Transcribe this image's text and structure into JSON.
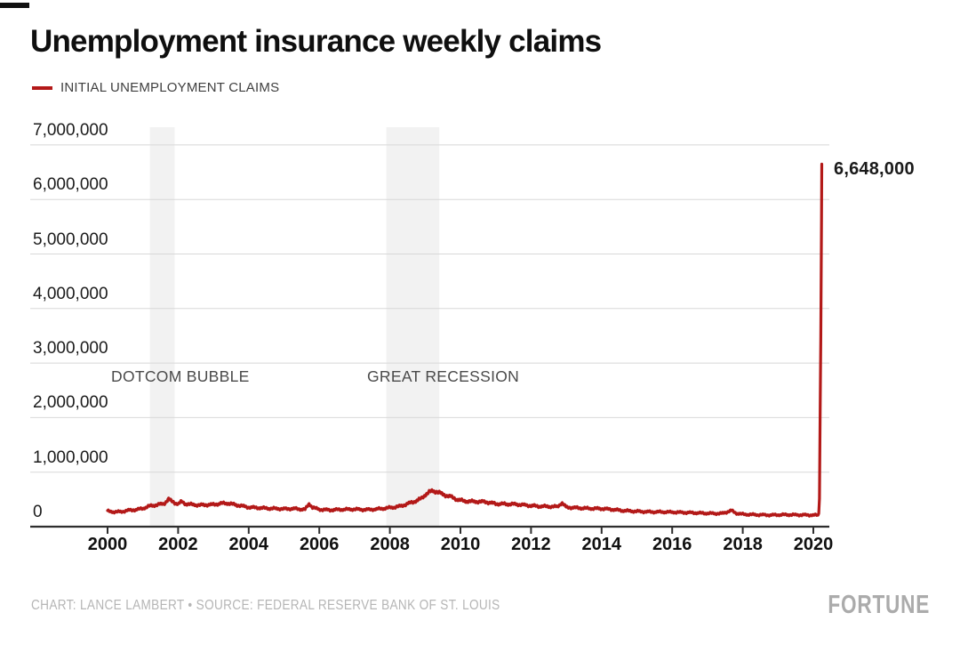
{
  "header": {
    "title": "Unemployment insurance weekly claims"
  },
  "legend": {
    "label": "INITIAL UNEMPLOYMENT CLAIMS"
  },
  "footer": {
    "credit": "CHART: LANCE LAMBERT • SOURCE: FEDERAL RESERVE BANK OF ST. LOUIS",
    "brand": "FORTUNE"
  },
  "chart_data": {
    "type": "line",
    "title": "Unemployment insurance weekly claims",
    "peak_label": "6,648,000",
    "peak_value": 6648000,
    "line_color": "#b31918",
    "band_color": "#f2f2f2",
    "grid_color": "#d8d8d8",
    "axis_color": "#2e2e2e",
    "x_axis": {
      "ticks": [
        2000,
        2002,
        2004,
        2006,
        2008,
        2010,
        2012,
        2014,
        2016,
        2018,
        2020
      ],
      "range": [
        2000,
        2020.3
      ]
    },
    "y_axis": {
      "ticks": [
        0,
        1000000,
        2000000,
        3000000,
        4000000,
        5000000,
        6000000,
        7000000
      ],
      "tick_labels": [
        "0",
        "1,000,000",
        "2,000,000",
        "3,000,000",
        "4,000,000",
        "5,000,000",
        "6,000,000",
        "7,000,000"
      ],
      "range": [
        0,
        7000000
      ]
    },
    "annotations": [
      {
        "label": "DOTCOM BUBBLE",
        "band_start": 2001.2,
        "band_end": 2001.9
      },
      {
        "label": "GREAT RECESSION",
        "band_start": 2007.9,
        "band_end": 2009.4
      }
    ],
    "series": [
      {
        "name": "INITIAL UNEMPLOYMENT CLAIMS",
        "points_year_thousands": [
          [
            2000.0,
            285
          ],
          [
            2000.2,
            270
          ],
          [
            2000.4,
            275
          ],
          [
            2000.6,
            300
          ],
          [
            2000.8,
            310
          ],
          [
            2001.0,
            335
          ],
          [
            2001.2,
            380
          ],
          [
            2001.4,
            400
          ],
          [
            2001.6,
            420
          ],
          [
            2001.73,
            505
          ],
          [
            2001.8,
            470
          ],
          [
            2001.9,
            440
          ],
          [
            2002.0,
            415
          ],
          [
            2002.1,
            460
          ],
          [
            2002.2,
            420
          ],
          [
            2002.4,
            405
          ],
          [
            2002.6,
            395
          ],
          [
            2002.8,
            400
          ],
          [
            2003.0,
            405
          ],
          [
            2003.2,
            425
          ],
          [
            2003.4,
            430
          ],
          [
            2003.6,
            405
          ],
          [
            2003.8,
            380
          ],
          [
            2004.0,
            355
          ],
          [
            2004.3,
            345
          ],
          [
            2004.6,
            335
          ],
          [
            2005.0,
            325
          ],
          [
            2005.3,
            330
          ],
          [
            2005.6,
            315
          ],
          [
            2005.72,
            425
          ],
          [
            2005.8,
            355
          ],
          [
            2006.0,
            315
          ],
          [
            2006.3,
            305
          ],
          [
            2006.6,
            315
          ],
          [
            2007.0,
            320
          ],
          [
            2007.3,
            310
          ],
          [
            2007.6,
            320
          ],
          [
            2007.9,
            340
          ],
          [
            2008.1,
            355
          ],
          [
            2008.3,
            375
          ],
          [
            2008.5,
            420
          ],
          [
            2008.7,
            460
          ],
          [
            2008.9,
            520
          ],
          [
            2009.0,
            585
          ],
          [
            2009.1,
            630
          ],
          [
            2009.22,
            655
          ],
          [
            2009.35,
            640
          ],
          [
            2009.5,
            590
          ],
          [
            2009.7,
            555
          ],
          [
            2009.9,
            500
          ],
          [
            2010.1,
            470
          ],
          [
            2010.4,
            460
          ],
          [
            2010.7,
            455
          ],
          [
            2011.0,
            420
          ],
          [
            2011.3,
            415
          ],
          [
            2011.6,
            410
          ],
          [
            2011.9,
            390
          ],
          [
            2012.2,
            375
          ],
          [
            2012.5,
            370
          ],
          [
            2012.75,
            365
          ],
          [
            2012.87,
            440
          ],
          [
            2013.0,
            355
          ],
          [
            2013.3,
            345
          ],
          [
            2013.6,
            335
          ],
          [
            2014.0,
            330
          ],
          [
            2014.3,
            315
          ],
          [
            2014.6,
            295
          ],
          [
            2015.0,
            280
          ],
          [
            2015.4,
            270
          ],
          [
            2015.8,
            270
          ],
          [
            2016.2,
            262
          ],
          [
            2016.6,
            255
          ],
          [
            2017.0,
            245
          ],
          [
            2017.4,
            240
          ],
          [
            2017.68,
            295
          ],
          [
            2017.8,
            250
          ],
          [
            2018.0,
            228
          ],
          [
            2018.4,
            218
          ],
          [
            2018.8,
            212
          ],
          [
            2019.2,
            220
          ],
          [
            2019.6,
            215
          ],
          [
            2020.0,
            212
          ],
          [
            2020.14,
            211
          ],
          [
            2020.17,
            282
          ],
          [
            2020.21,
            3307
          ],
          [
            2020.24,
            6648
          ]
        ]
      }
    ]
  }
}
